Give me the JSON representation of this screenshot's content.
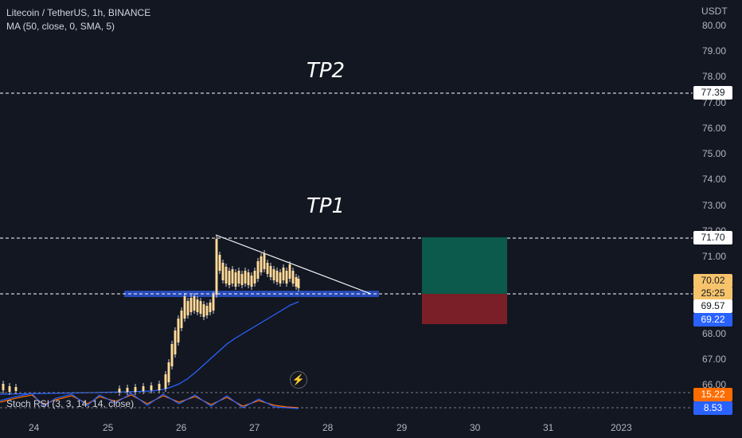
{
  "legend": {
    "symbol": "Litecoin / TetherUS, 1h, BINANCE",
    "indicator": "MA (50, close, 0, SMA, 5)"
  },
  "price_axis": {
    "currency": "USDT",
    "ticks": [
      "80.00",
      "79.00",
      "78.00",
      "77.00",
      "76.00",
      "75.00",
      "74.00",
      "73.00",
      "72.00",
      "71.00",
      "68.00",
      "67.00",
      "66.00"
    ]
  },
  "badges": {
    "tp2_line": "77.39",
    "tp1_line": "71.70",
    "current_price": "70.02",
    "countdown": "25:25",
    "support_line": "69.57",
    "ma_value": "69.22",
    "stoch_k": "15.22",
    "stoch_d": "8.53"
  },
  "annotations": {
    "tp2": "TP2",
    "tp1": "TP1"
  },
  "time_axis": [
    "24",
    "25",
    "26",
    "27",
    "28",
    "29",
    "30",
    "31",
    "2023"
  ],
  "stoch_label": "Stoch RSI (3, 3, 14, 14, close)",
  "icons": {
    "replay": "lightning-bolt-icon"
  },
  "colors": {
    "background": "#131722",
    "candle": "#f7c46c",
    "ma_line": "#2962ff",
    "support_zone": "#2962ff",
    "profit_zone": "#0b5a4b",
    "loss_zone": "#7a1f27",
    "stoch_k": "#2962ff",
    "stoch_d": "#ff6d00"
  }
}
